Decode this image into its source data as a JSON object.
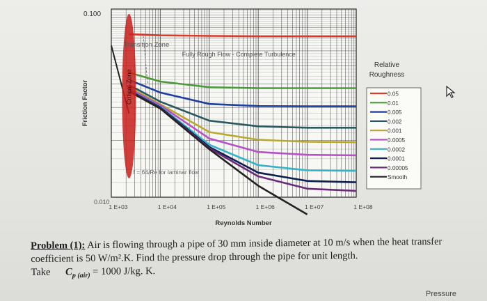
{
  "chart_data": {
    "type": "line",
    "xlabel": "Reynolds Number",
    "ylabel": "Friction Factor",
    "x_scale": "log",
    "y_scale": "log",
    "xlim": [
      1000,
      100000000
    ],
    "ylim": [
      0.01,
      0.1
    ],
    "x_ticks": [
      "1 E+03",
      "1 E+04",
      "1 E+05",
      "1 E+06",
      "1 E+07",
      "1 E+08"
    ],
    "y_ticks": [
      "0.100",
      "0.010"
    ],
    "grid": true,
    "legend_title": "Relative Roughness",
    "legend_position": "right",
    "annotations": {
      "transition_zone": "Transition Zone",
      "fully_rough": "Fully Rough Flow - Complete Turbulence",
      "critical_zone": "Critical Zone",
      "laminar": "f = 64/Re for laminar flow"
    },
    "series": [
      {
        "name": "0.05",
        "color": "#d93a2c",
        "x": [
          2300,
          10000,
          100000,
          1000000,
          10000000,
          100000000
        ],
        "values": [
          0.0735,
          0.0725,
          0.072,
          0.0717,
          0.0717,
          0.0717
        ]
      },
      {
        "name": "0.01",
        "color": "#4a9a3a",
        "x": [
          2300,
          10000,
          100000,
          1000000,
          10000000,
          100000000
        ],
        "values": [
          0.046,
          0.0412,
          0.0384,
          0.038,
          0.038,
          0.038
        ]
      },
      {
        "name": "0.005",
        "color": "#1f3fa0",
        "x": [
          2300,
          10000,
          100000,
          1000000,
          10000000,
          100000000
        ],
        "values": [
          0.042,
          0.036,
          0.0313,
          0.0305,
          0.0304,
          0.0304
        ]
      },
      {
        "name": "0.002",
        "color": "#2a5860",
        "x": [
          2300,
          10000,
          100000,
          1000000,
          10000000,
          100000000
        ],
        "values": [
          0.0395,
          0.0322,
          0.0255,
          0.0238,
          0.0234,
          0.0234
        ]
      },
      {
        "name": "0.001",
        "color": "#b8a830",
        "x": [
          2300,
          10000,
          100000,
          1000000,
          10000000,
          100000000
        ],
        "values": [
          0.0385,
          0.0312,
          0.0222,
          0.0202,
          0.0197,
          0.0196
        ]
      },
      {
        "name": "0.0005",
        "color": "#b64fc8",
        "x": [
          2300,
          10000,
          100000,
          1000000,
          10000000,
          100000000
        ],
        "values": [
          0.0378,
          0.0308,
          0.0205,
          0.0174,
          0.0168,
          0.0167
        ]
      },
      {
        "name": "0.0002",
        "color": "#36b2c8",
        "x": [
          2300,
          10000,
          100000,
          1000000,
          10000000,
          100000000
        ],
        "values": [
          0.0372,
          0.0303,
          0.019,
          0.0148,
          0.0139,
          0.0138
        ]
      },
      {
        "name": "0.0001",
        "color": "#0e1e50",
        "x": [
          2300,
          10000,
          100000,
          1000000,
          10000000,
          100000000
        ],
        "values": [
          0.037,
          0.03,
          0.0185,
          0.0135,
          0.0122,
          0.012
        ]
      },
      {
        "name": "0.00005",
        "color": "#6a2a78",
        "x": [
          2300,
          10000,
          100000,
          1000000,
          10000000,
          100000000
        ],
        "values": [
          0.0368,
          0.0298,
          0.0182,
          0.0129,
          0.0111,
          0.0108
        ]
      },
      {
        "name": "Smooth",
        "color": "#222222",
        "x": [
          2300,
          10000,
          100000,
          1000000,
          10000000
        ],
        "values": [
          0.0365,
          0.0296,
          0.018,
          0.0115,
          0.0081
        ]
      }
    ]
  },
  "problem": {
    "label": "Problem (1):",
    "text": "Air is flowing through a pipe of 30 mm inside diameter at 10 m/s when the heat transfer coefficient is 50 W/m².K. Find the pressure drop through the pipe for unit length.",
    "take": "Take",
    "cp_symbol": "C",
    "cp_sub": "p (air)",
    "cp_value": "= 1000 J/kg. K."
  },
  "footer_fragment": "Pressure",
  "cursor_icon": "mouse-pointer-icon"
}
